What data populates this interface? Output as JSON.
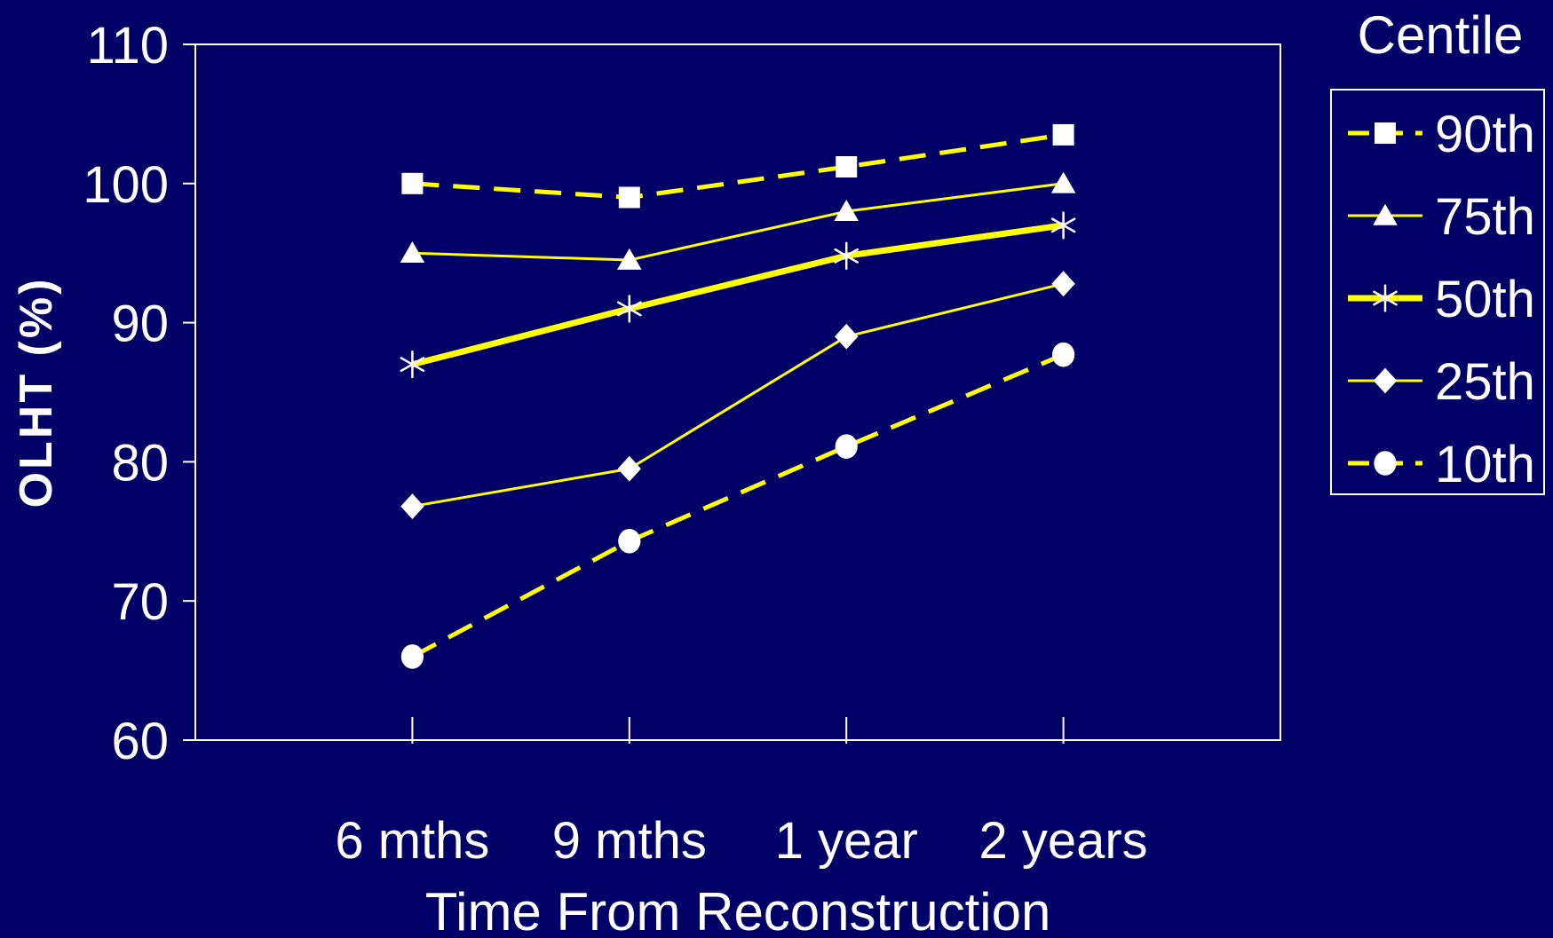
{
  "colors": {
    "background": "#000066",
    "line": "#ffff00",
    "marker": "#ffffff",
    "axis": "#ffffff"
  },
  "chart_data": {
    "type": "line",
    "title": "",
    "xlabel": "Time From Reconstruction",
    "ylabel": "OLHT (%)",
    "categories": [
      "6 mths",
      "9 mths",
      "1 year",
      "2 years"
    ],
    "ylim": [
      60,
      110
    ],
    "yticks": [
      60,
      70,
      80,
      90,
      100,
      110
    ],
    "grid": false,
    "legend": {
      "title": "Centile",
      "position": "right"
    },
    "series": [
      {
        "name": "90th",
        "values": [
          100,
          99,
          101.2,
          103.5
        ],
        "marker": "square",
        "dash": "dashed",
        "weight": "medium"
      },
      {
        "name": "75th",
        "values": [
          95,
          94.5,
          98,
          100
        ],
        "marker": "triangle",
        "dash": "solid",
        "weight": "thin"
      },
      {
        "name": "50th",
        "values": [
          87,
          91,
          94.8,
          97
        ],
        "marker": "asterisk",
        "dash": "solid",
        "weight": "thick"
      },
      {
        "name": "25th",
        "values": [
          76.8,
          79.5,
          89,
          92.8
        ],
        "marker": "diamond",
        "dash": "solid",
        "weight": "thin"
      },
      {
        "name": "10th",
        "values": [
          66,
          74.3,
          81.1,
          87.7
        ],
        "marker": "circle",
        "dash": "dashed",
        "weight": "medium"
      }
    ]
  }
}
